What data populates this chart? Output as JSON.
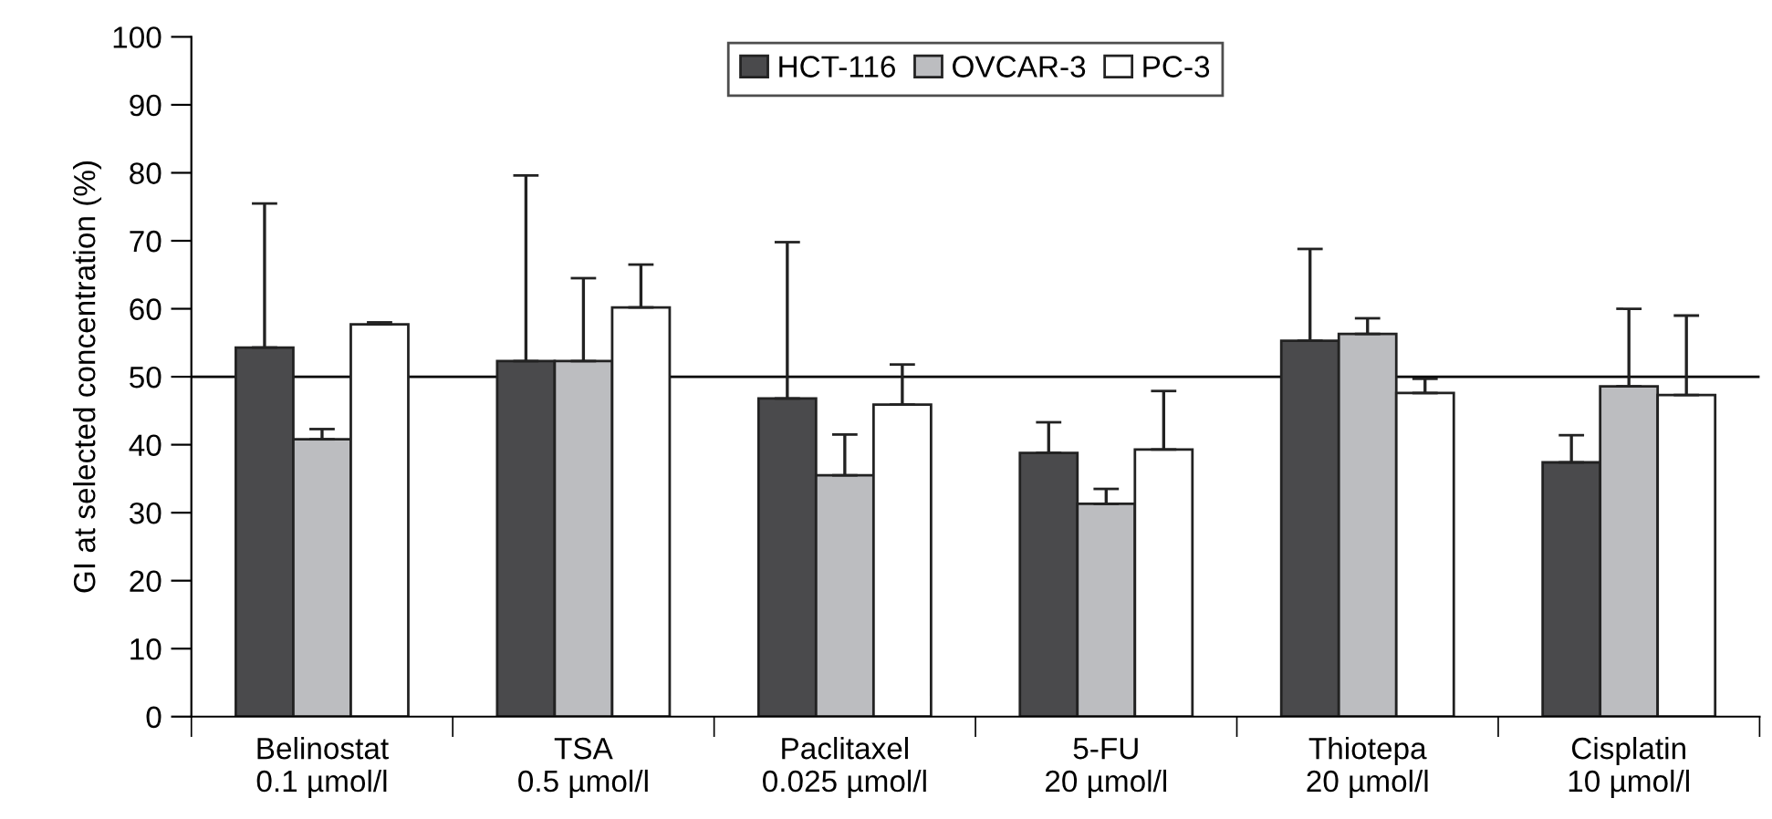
{
  "chart_data": {
    "type": "bar",
    "ylabel": "GI at selected concentration (%)",
    "categories": [
      "Belinostat\n0.1 µmol/l",
      "TSA\n0.5 µmol/l",
      "Paclitaxel\n0.025 µmol/l",
      "5-FU\n20 µmol/l",
      "Thiotepa\n20 µmol/l",
      "Cisplatin\n10 µmol/l"
    ],
    "series": [
      {
        "name": "HCT-116",
        "color": "#4a4a4c",
        "values": [
          54.3,
          52.3,
          46.8,
          38.8,
          55.3,
          37.4
        ],
        "errors": [
          [
            54.3,
            75.5
          ],
          [
            52.3,
            79.6
          ],
          [
            46.8,
            69.8
          ],
          [
            38.8,
            43.3
          ],
          [
            55.3,
            68.8
          ],
          [
            37.4,
            41.4
          ]
        ]
      },
      {
        "name": "OVCAR-3",
        "color": "#bcbdc0",
        "values": [
          40.8,
          52.3,
          35.5,
          31.3,
          56.3,
          48.6
        ],
        "errors": [
          [
            40.8,
            42.3
          ],
          [
            52.3,
            64.5
          ],
          [
            35.5,
            41.5
          ],
          [
            31.3,
            33.5
          ],
          [
            56.3,
            58.6
          ],
          [
            48.6,
            60.0
          ]
        ]
      },
      {
        "name": "PC-3",
        "color": "#ffffff",
        "values": [
          57.7,
          60.2,
          45.9,
          39.3,
          47.6,
          47.3
        ],
        "errors": [
          [
            57.7,
            58
          ],
          [
            60.2,
            66.5
          ],
          [
            45.9,
            51.8
          ],
          [
            39.3,
            47.9
          ],
          [
            47.6,
            49.7
          ],
          [
            47.3,
            59.0
          ]
        ]
      }
    ],
    "ylim": [
      0,
      100
    ],
    "yticks": [
      0,
      10,
      20,
      30,
      40,
      50,
      60,
      70,
      80,
      90,
      100
    ],
    "ref_lines": [
      {
        "axis": "y",
        "value": 50,
        "color": "#000000"
      }
    ],
    "legend": "top",
    "grid": false
  }
}
